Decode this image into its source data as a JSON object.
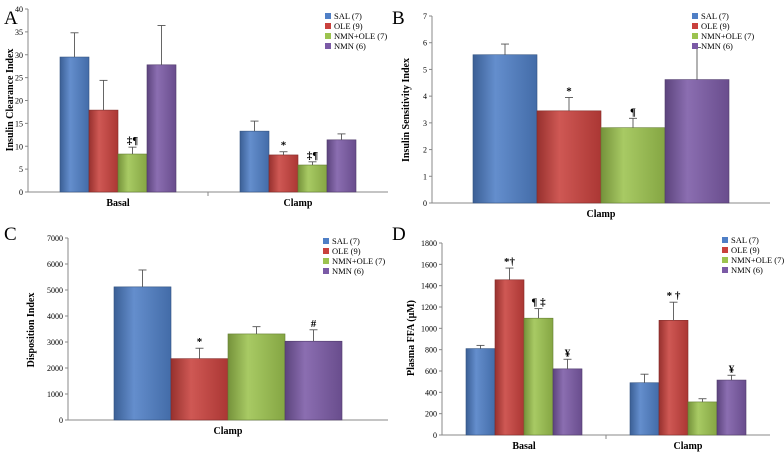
{
  "colors": {
    "SAL": "#4f7fc6",
    "OLE": "#c9413d",
    "NMN+OLE": "#9cc34f",
    "NMN": "#7b5aa6"
  },
  "chart_data": [
    {
      "panel": "A",
      "type": "bar",
      "ylabel": "Insulin Clearance Index",
      "ylim": [
        0,
        40
      ],
      "yticks": [
        0,
        5,
        10,
        15,
        20,
        25,
        30,
        35,
        40
      ],
      "categories": [
        "Basal",
        "Clamp"
      ],
      "series": [
        {
          "name": "SAL",
          "legend": "SAL (7)",
          "values": [
            29.5,
            13.3
          ],
          "errors": [
            5.3,
            2.2
          ],
          "labels": [
            "",
            ""
          ]
        },
        {
          "name": "OLE",
          "legend": "OLE (9)",
          "values": [
            17.9,
            8.1
          ],
          "errors": [
            6.5,
            0.7
          ],
          "labels": [
            "",
            "*"
          ]
        },
        {
          "name": "NMN+OLE",
          "legend": "NMN+OLE (7)",
          "values": [
            8.3,
            5.9
          ],
          "errors": [
            1.5,
            0.7
          ],
          "labels": [
            "‡¶",
            "‡¶"
          ]
        },
        {
          "name": "NMN",
          "legend": "NMN (6)",
          "values": [
            27.8,
            11.4
          ],
          "errors": [
            8.6,
            1.3
          ],
          "labels": [
            "",
            ""
          ]
        }
      ]
    },
    {
      "panel": "B",
      "type": "bar",
      "ylabel": "Insulin Sensitivity Index",
      "ylim": [
        0,
        7
      ],
      "yticks": [
        0,
        1,
        2,
        3,
        4,
        5,
        6,
        7
      ],
      "categories": [
        "Clamp"
      ],
      "series": [
        {
          "name": "SAL",
          "legend": "SAL (7)",
          "values": [
            5.55
          ],
          "errors": [
            0.4
          ],
          "labels": [
            ""
          ]
        },
        {
          "name": "OLE",
          "legend": "OLE (9)",
          "values": [
            3.45
          ],
          "errors": [
            0.5
          ],
          "labels": [
            "*"
          ]
        },
        {
          "name": "NMN+OLE",
          "legend": "NMN+OLE (7)",
          "values": [
            2.82
          ],
          "errors": [
            0.35
          ],
          "labels": [
            "¶"
          ]
        },
        {
          "name": "NMN",
          "legend": "NMN (6)",
          "values": [
            4.62
          ],
          "errors": [
            1.2
          ],
          "labels": [
            ""
          ]
        }
      ]
    },
    {
      "panel": "C",
      "type": "bar",
      "ylabel": "Disposition Index",
      "ylim": [
        0,
        7000
      ],
      "yticks": [
        0,
        1000,
        2000,
        3000,
        4000,
        5000,
        6000,
        7000
      ],
      "categories": [
        "Clamp"
      ],
      "series": [
        {
          "name": "SAL",
          "legend": "SAL (7)",
          "values": [
            5120
          ],
          "errors": [
            650
          ],
          "labels": [
            ""
          ]
        },
        {
          "name": "OLE",
          "legend": "OLE (9)",
          "values": [
            2360
          ],
          "errors": [
            400
          ],
          "labels": [
            "*"
          ]
        },
        {
          "name": "NMN+OLE",
          "legend": "NMN+OLE (7)",
          "values": [
            3310
          ],
          "errors": [
            280
          ],
          "labels": [
            ""
          ]
        },
        {
          "name": "NMN",
          "legend": "NMN (6)",
          "values": [
            3030
          ],
          "errors": [
            440
          ],
          "labels": [
            "#"
          ]
        }
      ]
    },
    {
      "panel": "D",
      "type": "bar",
      "ylabel": "Plasma FFA (μM)",
      "ylim": [
        0,
        1800
      ],
      "yticks": [
        0,
        200,
        400,
        600,
        800,
        1000,
        1200,
        1400,
        1600,
        1800
      ],
      "categories": [
        "Basal",
        "Clamp"
      ],
      "series": [
        {
          "name": "SAL",
          "legend": "SAL (7)",
          "values": [
            810,
            490
          ],
          "errors": [
            30,
            80
          ],
          "labels": [
            "",
            ""
          ]
        },
        {
          "name": "OLE",
          "legend": "OLE (9)",
          "values": [
            1455,
            1075
          ],
          "errors": [
            110,
            170
          ],
          "labels": [
            "*†",
            "* †"
          ]
        },
        {
          "name": "NMN+OLE",
          "legend": "NMN+OLE (7)",
          "values": [
            1095,
            310
          ],
          "errors": [
            90,
            30
          ],
          "labels": [
            "¶ ‡",
            ""
          ]
        },
        {
          "name": "NMN",
          "legend": "NMN (6)",
          "values": [
            620,
            515
          ],
          "errors": [
            90,
            45
          ],
          "labels": [
            "¥",
            "¥"
          ]
        }
      ]
    }
  ]
}
